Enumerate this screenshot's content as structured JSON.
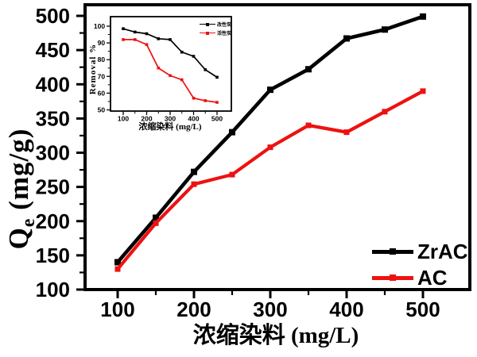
{
  "figure": {
    "background": "#ffffff",
    "text_color": "#000000"
  },
  "chart_data": [
    {
      "id": "main",
      "type": "line",
      "title": "",
      "xlabel": "浓缩染料 (mg/L)",
      "ylabel": "Qe (mg/g)",
      "ylabel_parts": {
        "q": "Q",
        "sub": "e",
        "units": " (mg/g)"
      },
      "x": [
        100,
        150,
        200,
        250,
        300,
        350,
        400,
        450,
        500
      ],
      "series": [
        {
          "name": "ZrAC",
          "color": "#000000",
          "values": [
            140,
            205,
            272,
            330,
            392,
            422,
            467,
            480,
            499
          ]
        },
        {
          "name": "AC",
          "color": "#ee1111",
          "values": [
            130,
            197,
            254,
            268,
            308,
            340,
            330,
            360,
            390
          ]
        }
      ],
      "xticks": [
        100,
        200,
        300,
        400,
        500
      ],
      "xminorticks": [
        150,
        250,
        350,
        450
      ],
      "yticks": [
        100,
        150,
        200,
        250,
        300,
        350,
        400,
        450,
        500
      ],
      "yminorticks": [
        125,
        175,
        225,
        275,
        325,
        375,
        425,
        475
      ],
      "xlim": [
        100,
        500
      ],
      "ylim": [
        100,
        500
      ],
      "grid": false,
      "legend_position": "bottom-right"
    },
    {
      "id": "inset",
      "type": "line",
      "title": "",
      "xlabel": "浓缩染料 (mg/L)",
      "ylabel": "Removal %",
      "x": [
        100,
        150,
        200,
        250,
        300,
        350,
        400,
        450,
        500
      ],
      "series": [
        {
          "name": "改性炭",
          "color": "#000000",
          "values": [
            98.5,
            96.5,
            95.5,
            92.5,
            92,
            84.5,
            82,
            74,
            69.5
          ]
        },
        {
          "name": "活性炭",
          "color": "#ee1111",
          "values": [
            92,
            92,
            89,
            75,
            70.5,
            68,
            57,
            55.5,
            54.5
          ]
        }
      ],
      "xticks": [
        100,
        200,
        300,
        400,
        500
      ],
      "xminorticks": [
        150,
        250,
        350,
        450
      ],
      "yticks": [
        50,
        60,
        70,
        80,
        90,
        100
      ],
      "yminorticks": [
        55,
        65,
        75,
        85,
        95
      ],
      "xlim": [
        100,
        500
      ],
      "ylim": [
        50,
        100
      ],
      "grid": false,
      "legend_position": "top-right"
    }
  ]
}
